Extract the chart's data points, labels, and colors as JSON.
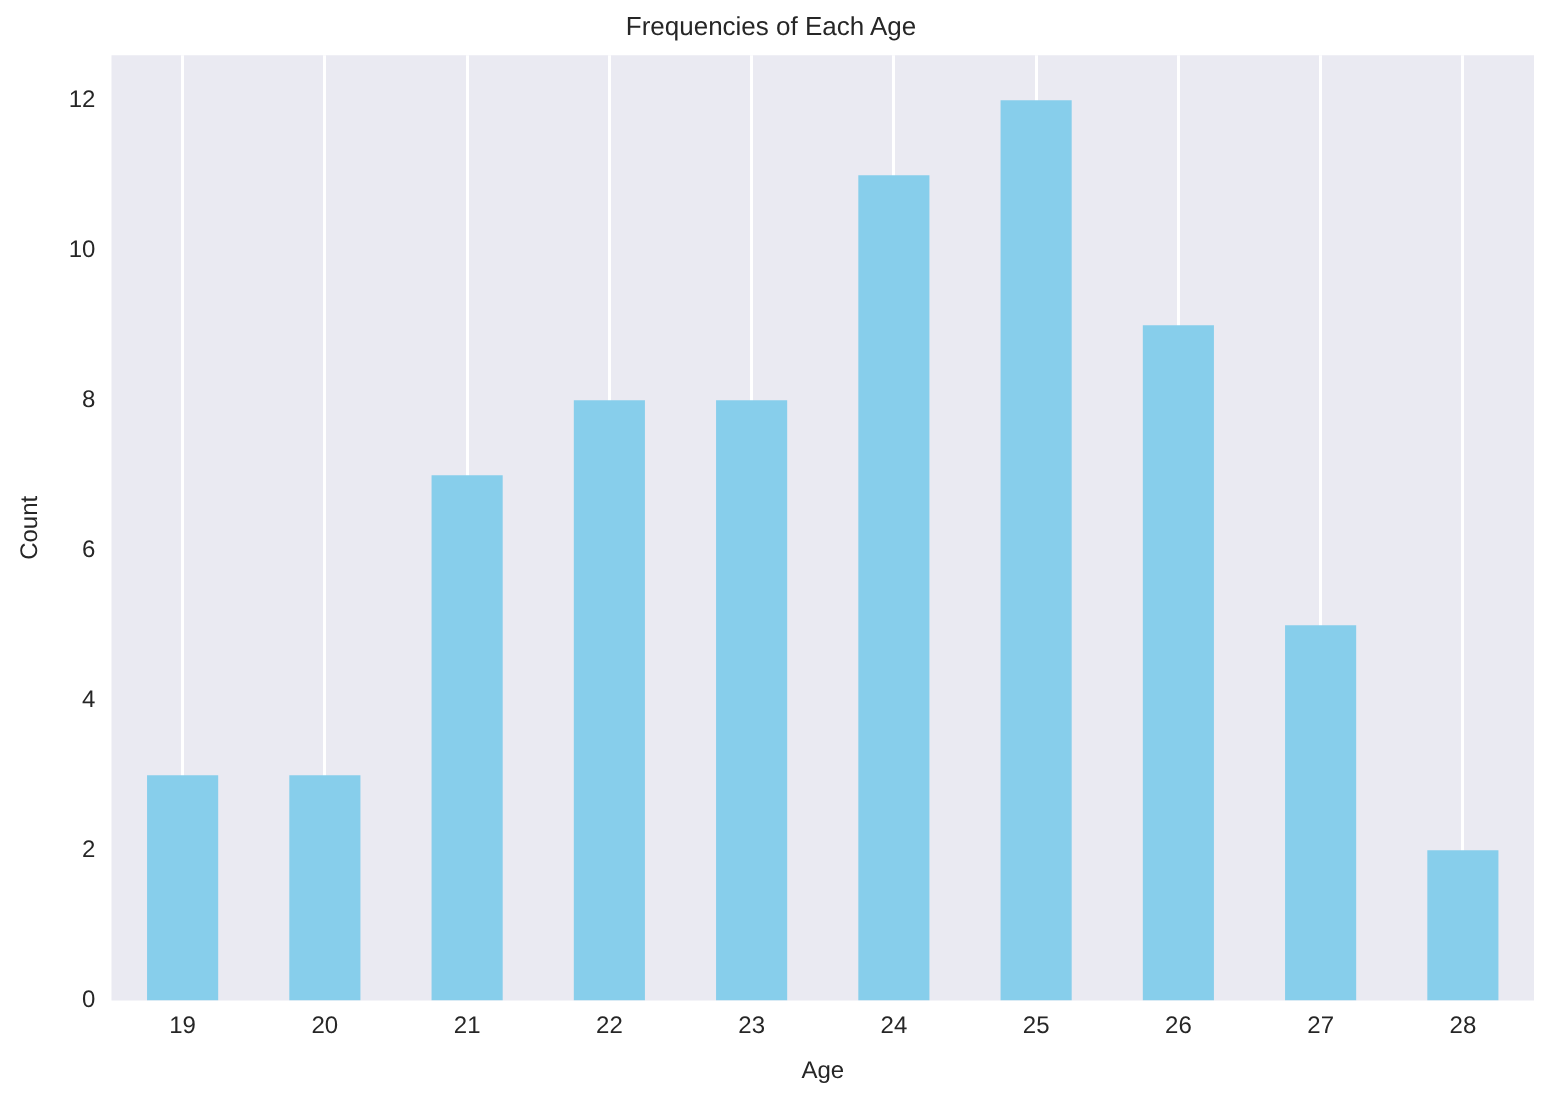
{
  "chart_data": {
    "type": "bar",
    "title": "Frequencies of Each Age",
    "xlabel": "Age",
    "ylabel": "Count",
    "categories": [
      "19",
      "20",
      "21",
      "22",
      "23",
      "24",
      "25",
      "26",
      "27",
      "28"
    ],
    "values": [
      3,
      3,
      7,
      8,
      8,
      11,
      12,
      9,
      5,
      2
    ],
    "color": "#87ceeb",
    "ylim": [
      0,
      12.6
    ],
    "yticks": [
      0,
      2,
      4,
      6,
      8,
      10,
      12
    ],
    "grid": "x",
    "legend": false
  }
}
